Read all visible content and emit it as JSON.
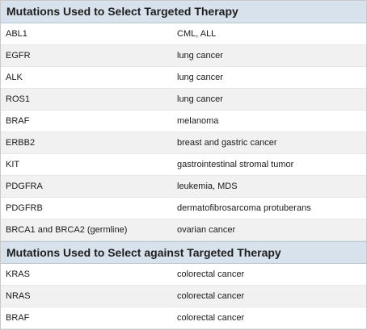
{
  "sections": [
    {
      "title": "Mutations Used to Select Targeted Therapy",
      "rows": [
        {
          "gene": "ABL1",
          "disease": "CML, ALL"
        },
        {
          "gene": "EGFR",
          "disease": "lung cancer"
        },
        {
          "gene": "ALK",
          "disease": "lung cancer"
        },
        {
          "gene": "ROS1",
          "disease": "lung cancer"
        },
        {
          "gene": "BRAF",
          "disease": "melanoma"
        },
        {
          "gene": "ERBB2",
          "disease": "breast and gastric cancer"
        },
        {
          "gene": "KIT",
          "disease": "gastrointestinal stromal tumor"
        },
        {
          "gene": "PDGFRA",
          "disease": "leukemia, MDS"
        },
        {
          "gene": "PDGFRB",
          "disease": "dermatofibrosarcoma protuberans"
        },
        {
          "gene": "BRCA1 and BRCA2 (germline)",
          "disease": "ovarian cancer"
        }
      ]
    },
    {
      "title": "Mutations Used to Select against Targeted Therapy",
      "rows": [
        {
          "gene": "KRAS",
          "disease": "colorectal cancer"
        },
        {
          "gene": "NRAS",
          "disease": "colorectal cancer"
        },
        {
          "gene": "BRAF",
          "disease": "colorectal cancer"
        }
      ]
    }
  ]
}
